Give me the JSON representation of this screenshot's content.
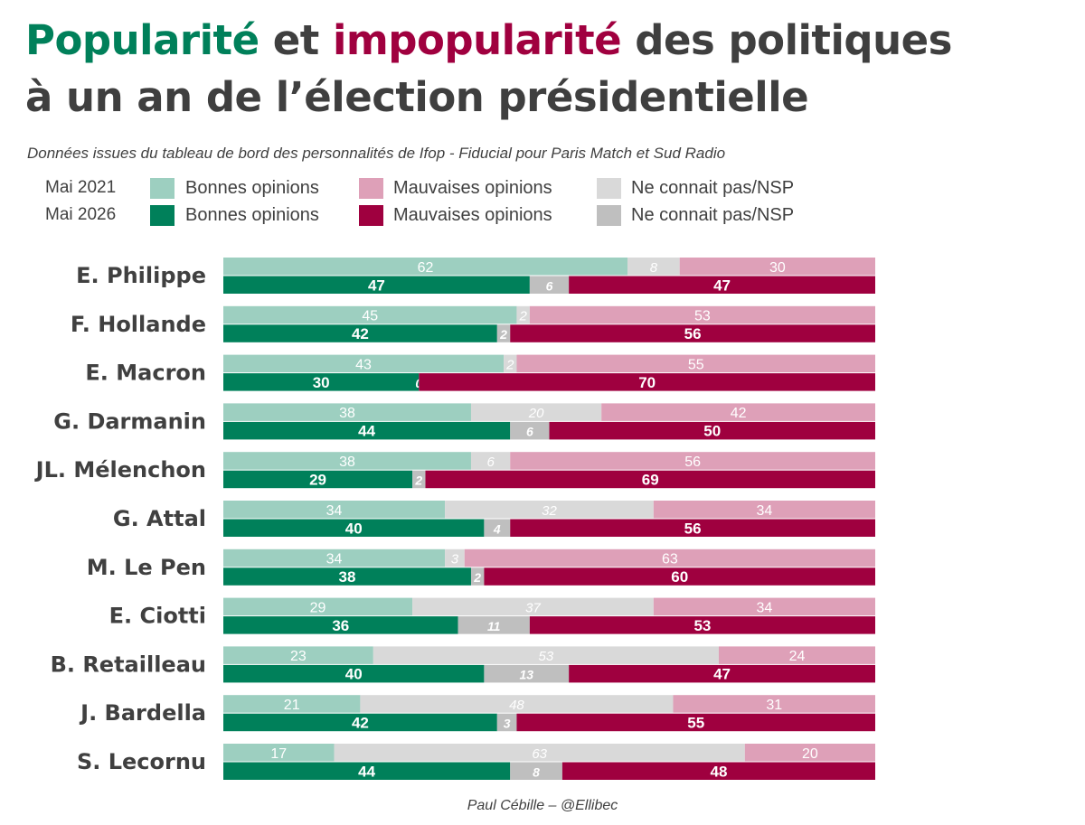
{
  "title": {
    "line1_part1": "Popularité",
    "line1_part2": " et ",
    "line1_part3": "impopularité",
    "line1_part4": " des politiques",
    "line2": "à un an de l’élection présidentielle"
  },
  "subtitle": "Données issues du tableau de bord des personnalités de Ifop - Fiducial pour Paris Match et Sud Radio",
  "credit": "Paul Cébille – @Ellibec",
  "colors": {
    "title_green": "#00805a",
    "title_red": "#a0003f",
    "good_2021": "#9dcfc0",
    "nsp_2021": "#d9d9d9",
    "bad_2021": "#dea0b8",
    "good_2026": "#00805a",
    "nsp_2026": "#bfbfbf",
    "bad_2026": "#9f003f"
  },
  "legend": {
    "rows": [
      {
        "year": "Mai 2021",
        "good": "Bonnes opinions",
        "bad": "Mauvaises opinions",
        "nsp": "Ne connait pas/NSP"
      },
      {
        "year": "Mai 2026",
        "good": "Bonnes opinions",
        "bad": "Mauvaises opinions",
        "nsp": "Ne connait pas/NSP"
      }
    ]
  },
  "chart_data": {
    "type": "bar",
    "orientation": "horizontal",
    "stacked": true,
    "normalized_total": 100,
    "categories": [
      "E. Philippe",
      "F. Hollande",
      "E. Macron",
      "G. Darmanin",
      "JL. Mélenchon",
      "G. Attal",
      "M. Le Pen",
      "E. Ciotti",
      "B. Retailleau",
      "J. Bardella",
      "S. Lecornu"
    ],
    "series": [
      {
        "name": "Mai 2021 - Bonnes opinions",
        "values": [
          62,
          45,
          43,
          38,
          38,
          34,
          34,
          29,
          23,
          21,
          17
        ]
      },
      {
        "name": "Mai 2021 - Ne connait pas/NSP",
        "values": [
          8,
          2,
          2,
          20,
          6,
          32,
          3,
          37,
          53,
          48,
          63
        ]
      },
      {
        "name": "Mai 2021 - Mauvaises opinions",
        "values": [
          30,
          53,
          55,
          42,
          56,
          34,
          63,
          34,
          24,
          31,
          20
        ]
      },
      {
        "name": "Mai 2026 - Bonnes opinions",
        "values": [
          47,
          42,
          30,
          44,
          29,
          40,
          38,
          36,
          40,
          42,
          44
        ]
      },
      {
        "name": "Mai 2026 - Ne connait pas/NSP",
        "values": [
          6,
          2,
          0,
          6,
          2,
          4,
          2,
          11,
          13,
          3,
          8
        ]
      },
      {
        "name": "Mai 2026 - Mauvaises opinions",
        "values": [
          47,
          56,
          70,
          50,
          69,
          56,
          60,
          53,
          47,
          55,
          48
        ]
      }
    ],
    "legend_position": "top",
    "grid": false
  }
}
